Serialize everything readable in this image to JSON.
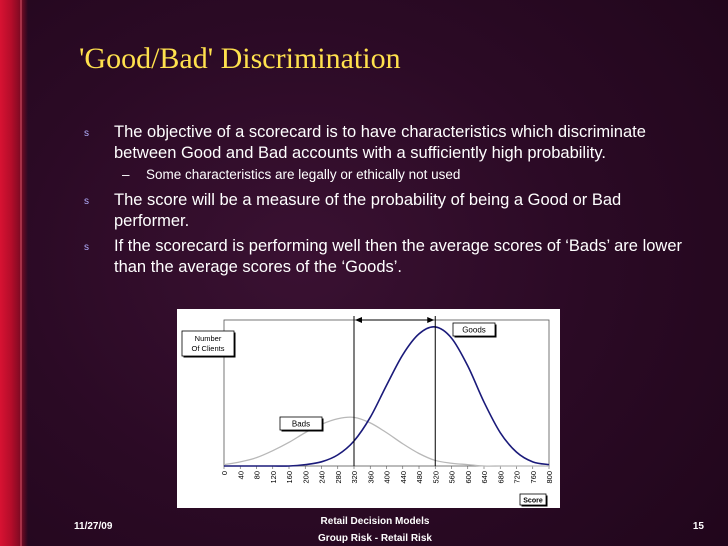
{
  "slide": {
    "title": "'Good/Bad' Discrimination",
    "bullets": [
      {
        "text": "The objective of a scorecard is to have characteristics which discriminate between Good and Bad accounts with a sufficiently high probability."
      },
      {
        "text": "The score will be a measure of the probability of being a Good or Bad performer."
      },
      {
        "text": "If the scorecard is performing well then the average scores of ‘Bads’ are lower than the average scores of the ‘Goods’."
      }
    ],
    "sub_bullet": "Some characteristics are legally or ethically not used",
    "bullet_mark": "s",
    "sub_mark": "–"
  },
  "footer": {
    "date": "11/27/09",
    "center_line1": "Retail Decision Models",
    "center_line2": "Group Risk - Retail Risk",
    "page": "15"
  },
  "colors": {
    "title": "#ffe14d",
    "goods_curve": "#1a1a7a",
    "bads_curve": "#b8b8b8",
    "accent_bar": "#d81232"
  },
  "chart_data": {
    "type": "line",
    "x": [
      0,
      40,
      80,
      120,
      160,
      200,
      240,
      280,
      320,
      360,
      400,
      440,
      480,
      520,
      560,
      600,
      640,
      680,
      720,
      760,
      800
    ],
    "series": [
      {
        "name": "Goods",
        "values": [
          0,
          0,
          0,
          0,
          0,
          1,
          3,
          8,
          18,
          35,
          58,
          80,
          95,
          100,
          92,
          72,
          46,
          24,
          10,
          3,
          1
        ]
      },
      {
        "name": "Bads",
        "values": [
          1,
          3,
          6,
          11,
          17,
          24,
          30,
          34,
          35,
          31,
          24,
          16,
          9,
          4,
          2,
          1,
          0,
          0,
          0,
          0,
          0
        ]
      }
    ],
    "xlabel": "Score",
    "ylabel": "Number Of Clients",
    "ylim": [
      0,
      105
    ],
    "bads_mean": 320,
    "goods_mean": 520,
    "grid": false
  }
}
